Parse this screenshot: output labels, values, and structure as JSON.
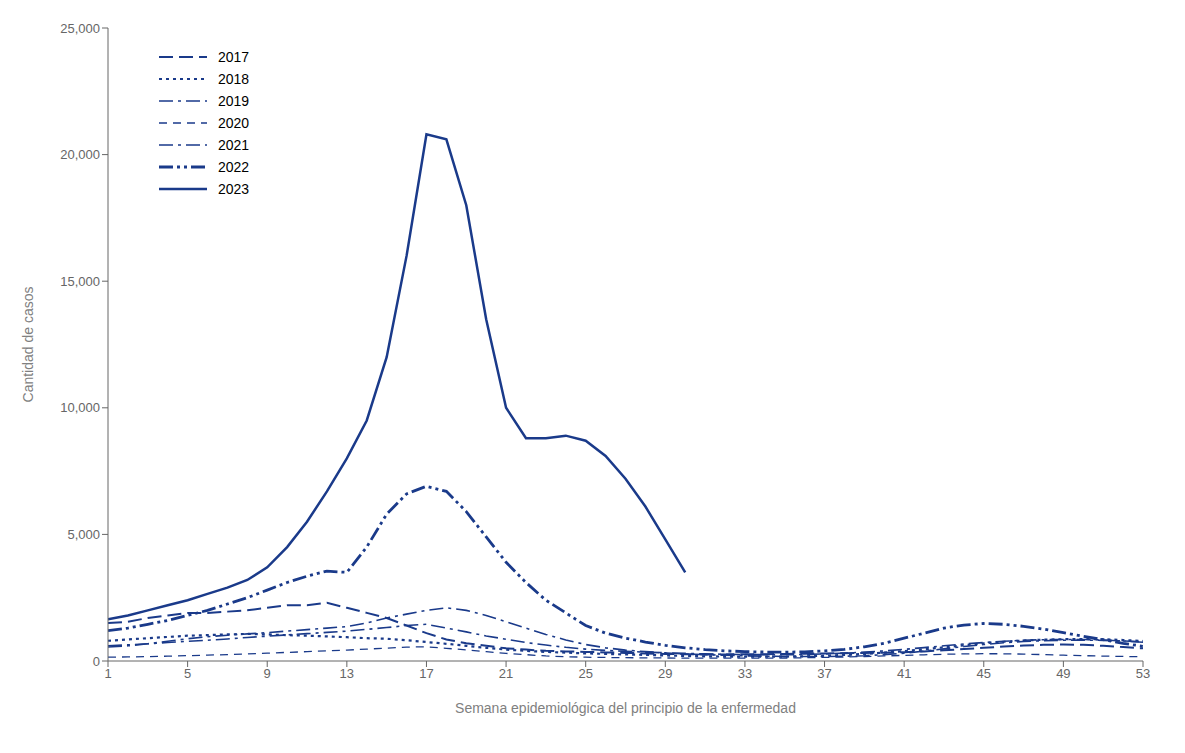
{
  "chart_data": {
    "type": "line",
    "xlabel": "Semana epidemiológica del principio de la enfermedad",
    "ylabel": "Cantidad de casos",
    "color": "#1a3a8a",
    "grid": false,
    "legend": "upper left",
    "x": [
      1,
      2,
      3,
      4,
      5,
      6,
      7,
      8,
      9,
      10,
      11,
      12,
      13,
      14,
      15,
      16,
      17,
      18,
      19,
      20,
      21,
      22,
      23,
      24,
      25,
      26,
      27,
      28,
      29,
      30,
      31,
      32,
      33,
      34,
      35,
      36,
      37,
      38,
      39,
      40,
      41,
      42,
      43,
      44,
      45,
      46,
      47,
      48,
      49,
      50,
      51,
      52,
      53
    ],
    "xlim": [
      1,
      53
    ],
    "xticks": [
      1,
      5,
      9,
      13,
      17,
      21,
      25,
      29,
      33,
      37,
      41,
      45,
      49,
      53
    ],
    "ylim": [
      0,
      25000
    ],
    "yticks": [
      0,
      {
        "value": 5000,
        "label": "5,000"
      },
      {
        "value": 10000,
        "label": "10,000"
      },
      {
        "value": 15000,
        "label": "15,000"
      },
      {
        "value": 20000,
        "label": "20,000"
      },
      {
        "value": 25000,
        "label": "25,000"
      }
    ],
    "series": [
      {
        "name": "2017",
        "line_style": "longdash",
        "values": [
          1500,
          1550,
          1700,
          1800,
          1900,
          1900,
          1950,
          2000,
          2100,
          2200,
          2200,
          2300,
          2100,
          1900,
          1700,
          1400,
          1100,
          850,
          700,
          600,
          500,
          450,
          400,
          380,
          360,
          340,
          320,
          300,
          280,
          270,
          260,
          260,
          265,
          270,
          280,
          290,
          300,
          310,
          320,
          330,
          350,
          380,
          420,
          470,
          520,
          570,
          610,
          640,
          650,
          640,
          600,
          550,
          500
        ]
      },
      {
        "name": "2018",
        "line_style": "dotted",
        "values": [
          800,
          850,
          900,
          950,
          1000,
          1020,
          1050,
          1070,
          1050,
          1020,
          1000,
          970,
          940,
          900,
          880,
          820,
          750,
          680,
          600,
          520,
          450,
          400,
          360,
          330,
          300,
          280,
          260,
          240,
          220,
          200,
          185,
          175,
          170,
          170,
          175,
          185,
          210,
          240,
          280,
          330,
          390,
          460,
          540,
          620,
          700,
          760,
          810,
          840,
          860,
          870,
          860,
          830,
          790
        ]
      },
      {
        "name": "2019",
        "line_style": "dashdot",
        "values": [
          600,
          640,
          680,
          730,
          780,
          820,
          870,
          930,
          980,
          1030,
          1080,
          1130,
          1180,
          1250,
          1320,
          1400,
          1450,
          1300,
          1150,
          990,
          860,
          730,
          630,
          540,
          470,
          420,
          380,
          350,
          320,
          300,
          280,
          265,
          255,
          250,
          248,
          260,
          280,
          310,
          350,
          400,
          460,
          530,
          600,
          670,
          730,
          780,
          820,
          840,
          850,
          850,
          830,
          790,
          740
        ]
      },
      {
        "name": "2020",
        "line_style": "dashed",
        "values": [
          150,
          160,
          175,
          190,
          210,
          230,
          255,
          280,
          310,
          340,
          370,
          400,
          430,
          470,
          510,
          550,
          560,
          500,
          440,
          370,
          300,
          250,
          200,
          170,
          150,
          140,
          130,
          125,
          120,
          115,
          112,
          110,
          110,
          112,
          118,
          128,
          142,
          158,
          178,
          200,
          222,
          245,
          265,
          280,
          288,
          285,
          272,
          252,
          230,
          210,
          195,
          180,
          168
        ]
      },
      {
        "name": "2021",
        "line_style": "dashdot",
        "values": [
          550,
          600,
          680,
          780,
          880,
          960,
          1020,
          1070,
          1120,
          1180,
          1240,
          1300,
          1360,
          1500,
          1700,
          1850,
          2000,
          2100,
          2000,
          1800,
          1550,
          1300,
          1050,
          830,
          650,
          520,
          430,
          370,
          320,
          280,
          250,
          225,
          205,
          190,
          180,
          175,
          178,
          188,
          210,
          250,
          310,
          390,
          480,
          570,
          650,
          720,
          770,
          800,
          820,
          825,
          815,
          790,
          760
        ]
      },
      {
        "name": "2022",
        "line_style": "dashdotdot",
        "values": [
          1200,
          1300,
          1450,
          1600,
          1800,
          2000,
          2250,
          2500,
          2800,
          3100,
          3350,
          3550,
          3500,
          4500,
          5800,
          6600,
          6900,
          6700,
          5900,
          4900,
          3900,
          3100,
          2400,
          1900,
          1400,
          1100,
          900,
          750,
          620,
          520,
          450,
          400,
          370,
          355,
          350,
          360,
          400,
          460,
          560,
          700,
          900,
          1100,
          1300,
          1420,
          1480,
          1450,
          1370,
          1260,
          1120,
          980,
          840,
          700,
          580
        ]
      },
      {
        "name": "2023",
        "line_style": "solid",
        "values": [
          1650,
          1800,
          2000,
          2200,
          2400,
          2650,
          2900,
          3200,
          3700,
          4500,
          5500,
          6700,
          8000,
          9500,
          12000,
          16000,
          20800,
          20600,
          18000,
          13500,
          10000,
          8800,
          8800,
          8900,
          8700,
          8100,
          7200,
          6100,
          4800,
          3500,
          null,
          null,
          null,
          null,
          null,
          null,
          null,
          null,
          null,
          null,
          null,
          null,
          null,
          null,
          null,
          null,
          null,
          null,
          null,
          null,
          null,
          null,
          null
        ]
      }
    ]
  }
}
